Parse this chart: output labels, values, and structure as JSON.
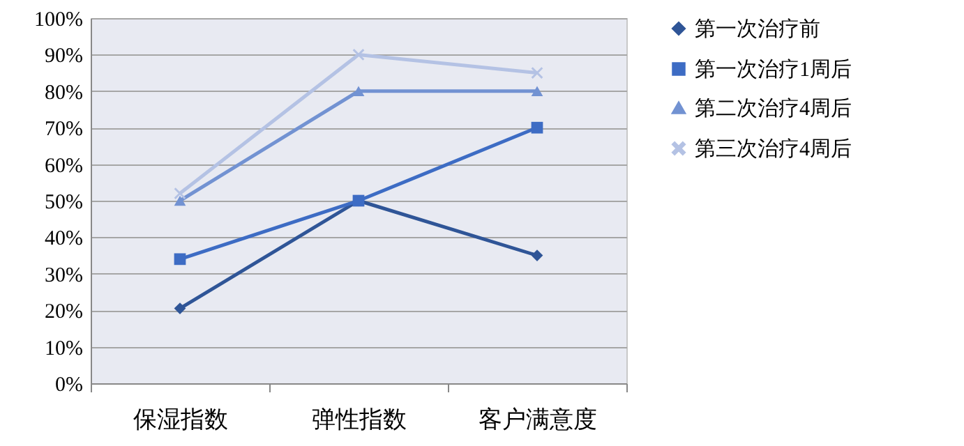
{
  "chart_data": {
    "type": "line",
    "categories": [
      "保湿指数",
      "弹性指数",
      "客户满意度"
    ],
    "series": [
      {
        "name": "第一次治疗前",
        "color": "#2f5597",
        "marker": "diamond",
        "values": [
          20.5,
          50,
          35
        ]
      },
      {
        "name": "第一次治疗1周后",
        "color": "#3d6cc4",
        "marker": "square",
        "values": [
          34,
          50,
          70
        ]
      },
      {
        "name": "第二次治疗4周后",
        "color": "#7292d2",
        "marker": "triangle",
        "values": [
          50,
          80,
          80
        ]
      },
      {
        "name": "第三次治疗4周后",
        "color": "#b4c2e4",
        "marker": "cross",
        "values": [
          52,
          90,
          85
        ]
      }
    ],
    "ylim": [
      0,
      100
    ],
    "yticks": [
      {
        "value": 0,
        "label": "0%"
      },
      {
        "value": 10,
        "label": "10%"
      },
      {
        "value": 20,
        "label": "20%"
      },
      {
        "value": 30,
        "label": "30%"
      },
      {
        "value": 40,
        "label": "40%"
      },
      {
        "value": 50,
        "label": "50%"
      },
      {
        "value": 60,
        "label": "60%"
      },
      {
        "value": 70,
        "label": "70%"
      },
      {
        "value": 80,
        "label": "80%"
      },
      {
        "value": 90,
        "label": "90%"
      },
      {
        "value": 100,
        "label": "100%"
      }
    ],
    "grid": "y",
    "legend": "right"
  }
}
